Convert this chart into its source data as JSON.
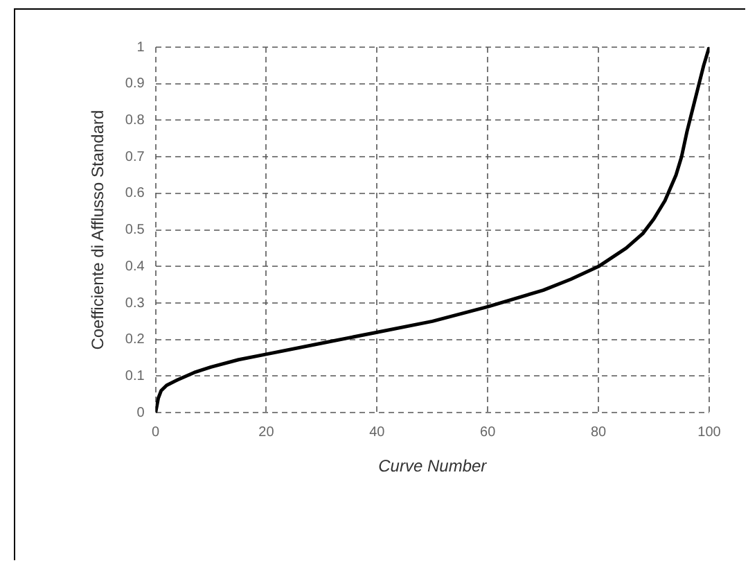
{
  "chart_data": {
    "type": "line",
    "xlabel": "Curve Number",
    "ylabel": "Coefficiente di Afflusso Standard",
    "xlim": [
      0,
      100
    ],
    "xticks": [
      0,
      20,
      40,
      60,
      80,
      100
    ],
    "ylim": [
      0,
      1
    ],
    "yticks": [
      0,
      0.1,
      0.2,
      0.3,
      0.4,
      0.5,
      0.6,
      0.7,
      0.8,
      0.9,
      1
    ],
    "grid": true,
    "legend": false,
    "marker": "none",
    "line_style": "solid",
    "series": [
      {
        "color": "#000000",
        "x": [
          0,
          0.5,
          1,
          2,
          4,
          7,
          10,
          15,
          20,
          30,
          40,
          50,
          60,
          70,
          75,
          80,
          85,
          88,
          90,
          92,
          94,
          95,
          96,
          97,
          98,
          99,
          100
        ],
        "values": [
          0,
          0.04,
          0.06,
          0.075,
          0.09,
          0.11,
          0.125,
          0.145,
          0.16,
          0.19,
          0.22,
          0.25,
          0.29,
          0.335,
          0.365,
          0.4,
          0.45,
          0.49,
          0.53,
          0.58,
          0.65,
          0.7,
          0.77,
          0.83,
          0.89,
          0.95,
          1
        ]
      }
    ]
  }
}
